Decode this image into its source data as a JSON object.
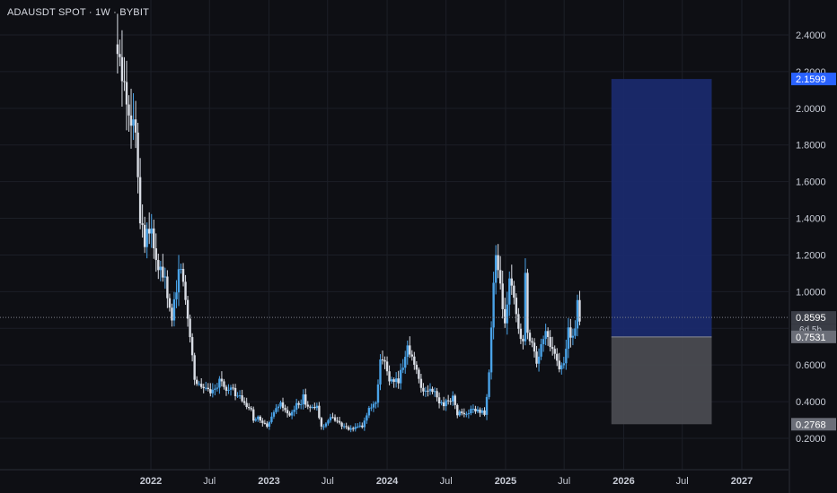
{
  "header": {
    "title": "ADAUSDT SPOT · 1W · BYBIT"
  },
  "colors": {
    "background": "#0e0f14",
    "grid": "#1c1f27",
    "axis_text": "#c8ccd6",
    "candle_up": "#4aa3e8",
    "candle_down": "#d9dde5",
    "target_zone": "#1a2a6c",
    "stop_zone": "#4a4b50",
    "target_tag": "#2962ff",
    "price_tag": "#5d606b"
  },
  "chart_data": {
    "type": "candlestick",
    "title": "",
    "ylim": [
      0.1,
      2.55
    ],
    "y_ticks": [
      "2.4000",
      "2.2000",
      "2.0000",
      "1.8000",
      "1.6000",
      "1.4000",
      "1.2000",
      "1.0000",
      "0.8000",
      "0.6000",
      "0.4000",
      "0.2000"
    ],
    "x_ticks": [
      {
        "label": "2022",
        "date": "2022-01-01"
      },
      {
        "label": "Jul",
        "date": "2022-07-01"
      },
      {
        "label": "2023",
        "date": "2023-01-01"
      },
      {
        "label": "Jul",
        "date": "2023-07-01"
      },
      {
        "label": "2024",
        "date": "2024-01-01"
      },
      {
        "label": "Jul",
        "date": "2024-07-01"
      },
      {
        "label": "2025",
        "date": "2025-01-01"
      },
      {
        "label": "Jul",
        "date": "2025-07-01"
      },
      {
        "label": "2026",
        "date": "2026-01-01"
      },
      {
        "label": "Jul",
        "date": "2026-07-01"
      },
      {
        "label": "2027",
        "date": "2027-01-01"
      }
    ],
    "series": [
      {
        "interval": "1W",
        "close_path": [
          [
            "2021-09-20",
            2.28
          ],
          [
            "2021-10-04",
            2.18
          ],
          [
            "2021-10-18",
            2.05
          ],
          [
            "2021-11-01",
            1.95
          ],
          [
            "2021-11-15",
            1.85
          ],
          [
            "2021-11-29",
            1.45
          ],
          [
            "2021-12-13",
            1.3
          ],
          [
            "2021-12-27",
            1.35
          ],
          [
            "2022-01-10",
            1.25
          ],
          [
            "2022-01-24",
            1.1
          ],
          [
            "2022-02-07",
            1.12
          ],
          [
            "2022-02-21",
            0.95
          ],
          [
            "2022-03-07",
            0.85
          ],
          [
            "2022-03-21",
            1.05
          ],
          [
            "2022-04-04",
            1.15
          ],
          [
            "2022-04-18",
            0.95
          ],
          [
            "2022-05-02",
            0.78
          ],
          [
            "2022-05-16",
            0.52
          ],
          [
            "2022-05-30",
            0.5
          ],
          [
            "2022-06-13",
            0.47
          ],
          [
            "2022-06-27",
            0.46
          ],
          [
            "2022-07-11",
            0.47
          ],
          [
            "2022-07-25",
            0.5
          ],
          [
            "2022-08-08",
            0.52
          ],
          [
            "2022-08-22",
            0.45
          ],
          [
            "2022-09-05",
            0.47
          ],
          [
            "2022-09-19",
            0.44
          ],
          [
            "2022-10-03",
            0.42
          ],
          [
            "2022-10-17",
            0.38
          ],
          [
            "2022-10-31",
            0.37
          ],
          [
            "2022-11-14",
            0.31
          ],
          [
            "2022-11-28",
            0.31
          ],
          [
            "2022-12-12",
            0.28
          ],
          [
            "2022-12-26",
            0.26
          ],
          [
            "2023-01-09",
            0.31
          ],
          [
            "2023-01-23",
            0.36
          ],
          [
            "2023-02-06",
            0.38
          ],
          [
            "2023-02-20",
            0.35
          ],
          [
            "2023-03-06",
            0.32
          ],
          [
            "2023-03-20",
            0.36
          ],
          [
            "2023-04-03",
            0.39
          ],
          [
            "2023-04-17",
            0.42
          ],
          [
            "2023-05-01",
            0.38
          ],
          [
            "2023-05-15",
            0.36
          ],
          [
            "2023-05-29",
            0.37
          ],
          [
            "2023-06-12",
            0.26
          ],
          [
            "2023-06-26",
            0.29
          ],
          [
            "2023-07-10",
            0.31
          ],
          [
            "2023-07-24",
            0.3
          ],
          [
            "2023-08-07",
            0.29
          ],
          [
            "2023-08-21",
            0.26
          ],
          [
            "2023-09-04",
            0.25
          ],
          [
            "2023-09-18",
            0.25
          ],
          [
            "2023-10-02",
            0.26
          ],
          [
            "2023-10-16",
            0.27
          ],
          [
            "2023-10-30",
            0.33
          ],
          [
            "2023-11-13",
            0.37
          ],
          [
            "2023-11-27",
            0.38
          ],
          [
            "2023-12-11",
            0.6
          ],
          [
            "2023-12-25",
            0.62
          ],
          [
            "2024-01-08",
            0.52
          ],
          [
            "2024-01-22",
            0.5
          ],
          [
            "2024-02-05",
            0.52
          ],
          [
            "2024-02-19",
            0.6
          ],
          [
            "2024-03-04",
            0.72
          ],
          [
            "2024-03-18",
            0.63
          ],
          [
            "2024-04-01",
            0.58
          ],
          [
            "2024-04-15",
            0.48
          ],
          [
            "2024-04-29",
            0.45
          ],
          [
            "2024-05-13",
            0.46
          ],
          [
            "2024-05-27",
            0.45
          ],
          [
            "2024-06-10",
            0.4
          ],
          [
            "2024-06-24",
            0.39
          ],
          [
            "2024-07-08",
            0.4
          ],
          [
            "2024-07-22",
            0.42
          ],
          [
            "2024-08-05",
            0.33
          ],
          [
            "2024-08-19",
            0.34
          ],
          [
            "2024-09-02",
            0.33
          ],
          [
            "2024-09-16",
            0.35
          ],
          [
            "2024-09-30",
            0.35
          ],
          [
            "2024-10-14",
            0.35
          ],
          [
            "2024-10-28",
            0.33
          ],
          [
            "2024-11-11",
            0.55
          ],
          [
            "2024-11-18",
            0.8
          ],
          [
            "2024-11-25",
            1.05
          ],
          [
            "2024-12-02",
            1.18
          ],
          [
            "2024-12-16",
            1.0
          ],
          [
            "2024-12-30",
            0.85
          ],
          [
            "2025-01-13",
            1.05
          ],
          [
            "2025-01-27",
            0.95
          ],
          [
            "2025-02-10",
            0.78
          ],
          [
            "2025-02-24",
            0.7
          ],
          [
            "2025-03-03",
            1.1
          ],
          [
            "2025-03-10",
            0.74
          ],
          [
            "2025-03-24",
            0.7
          ],
          [
            "2025-04-07",
            0.62
          ],
          [
            "2025-04-21",
            0.7
          ],
          [
            "2025-05-05",
            0.78
          ],
          [
            "2025-05-19",
            0.73
          ],
          [
            "2025-06-02",
            0.66
          ],
          [
            "2025-06-16",
            0.58
          ],
          [
            "2025-06-30",
            0.6
          ],
          [
            "2025-07-14",
            0.8
          ],
          [
            "2025-07-28",
            0.75
          ],
          [
            "2025-08-04",
            0.78
          ],
          [
            "2025-08-11",
            0.95
          ],
          [
            "2025-08-18",
            0.86
          ]
        ]
      }
    ],
    "position_tool": {
      "target": 2.1599,
      "entry": 0.7531,
      "stop": 0.2768
    },
    "current_price": {
      "value": "0.8595",
      "countdown": "6d 5h"
    },
    "axis_tags": [
      {
        "label": "2.1599",
        "value": 2.1599,
        "kind": "target"
      },
      {
        "label": "0.8595",
        "value": 0.8595,
        "kind": "price"
      },
      {
        "label": "0.7531",
        "value": 0.7531,
        "kind": "entry"
      },
      {
        "label": "0.2768",
        "value": 0.2768,
        "kind": "stop"
      }
    ],
    "grid": true
  }
}
